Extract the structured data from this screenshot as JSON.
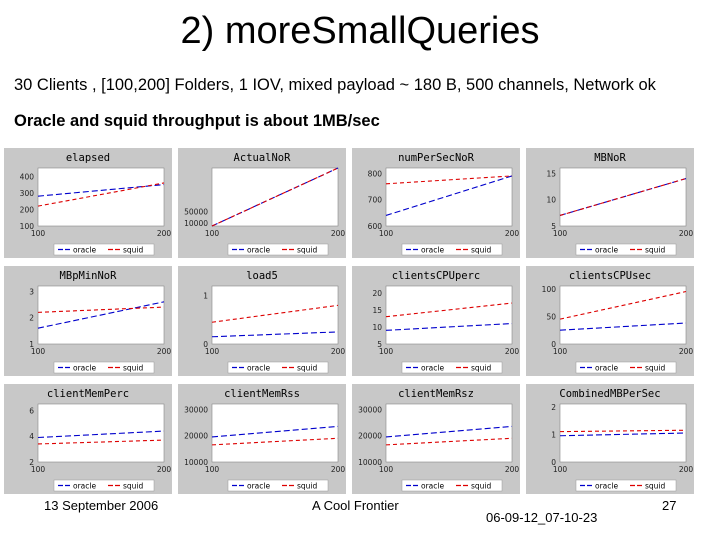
{
  "slide": {
    "title": "2) moreSmallQueries",
    "subtitle": "30 Clients , [100,200] Folders, 1 IOV, mixed payload ~ 180 B, 500 channels, Network ok",
    "subtitle2": "Oracle and squid throughput is about 1MB/sec",
    "footer_date": "13 September 2006",
    "footer_center": "A Cool Frontier",
    "footer_id": "06-09-12_07-10-23",
    "page_number": "27"
  },
  "colors": {
    "panel_bg": "#c8c8c8",
    "plot_bg": "#ffffff",
    "oracle": "#0000cc",
    "squid": "#dd0000"
  },
  "legend_labels": [
    "oracle",
    "squid"
  ],
  "chart_data": [
    {
      "type": "line",
      "title": "elapsed",
      "xlim": [
        100,
        200
      ],
      "x_ticks": [
        "100",
        "200"
      ],
      "y_ticks": [
        "400",
        "300",
        "200",
        "100"
      ],
      "ylim": [
        100,
        450
      ],
      "series": [
        {
          "name": "oracle",
          "x": [
            100,
            200
          ],
          "values": [
            280,
            350
          ]
        },
        {
          "name": "squid",
          "x": [
            100,
            200
          ],
          "values": [
            220,
            360
          ]
        }
      ]
    },
    {
      "type": "line",
      "title": "ActualNoR",
      "xlim": [
        100,
        200
      ],
      "x_ticks": [
        "100",
        "200"
      ],
      "y_ticks": [
        "10000",
        "50000"
      ],
      "ylim": [
        0,
        200000
      ],
      "series": [
        {
          "name": "oracle",
          "x": [
            100,
            200
          ],
          "values": [
            0,
            200000
          ]
        },
        {
          "name": "squid",
          "x": [
            100,
            200
          ],
          "values": [
            0,
            200000
          ]
        }
      ]
    },
    {
      "type": "line",
      "title": "numPerSecNoR",
      "xlim": [
        100,
        200
      ],
      "x_ticks": [
        "100",
        "200"
      ],
      "y_ticks": [
        "800",
        "700",
        "600"
      ],
      "ylim": [
        600,
        820
      ],
      "series": [
        {
          "name": "oracle",
          "x": [
            100,
            200
          ],
          "values": [
            640,
            790
          ]
        },
        {
          "name": "squid",
          "x": [
            100,
            200
          ],
          "values": [
            760,
            790
          ]
        }
      ]
    },
    {
      "type": "line",
      "title": "MBNoR",
      "xlim": [
        100,
        200
      ],
      "x_ticks": [
        "100",
        "200"
      ],
      "y_ticks": [
        "15",
        "10",
        "5"
      ],
      "ylim": [
        5,
        16
      ],
      "series": [
        {
          "name": "oracle",
          "x": [
            100,
            200
          ],
          "values": [
            7,
            14
          ]
        },
        {
          "name": "squid",
          "x": [
            100,
            200
          ],
          "values": [
            7,
            14
          ]
        }
      ]
    },
    {
      "type": "line",
      "title": "MBpMinNoR",
      "xlim": [
        100,
        200
      ],
      "x_ticks": [
        "100",
        "200"
      ],
      "y_ticks": [
        "3",
        "2",
        "1"
      ],
      "ylim": [
        1,
        3.2
      ],
      "series": [
        {
          "name": "oracle",
          "x": [
            100,
            200
          ],
          "values": [
            1.6,
            2.6
          ]
        },
        {
          "name": "squid",
          "x": [
            100,
            200
          ],
          "values": [
            2.2,
            2.4
          ]
        }
      ]
    },
    {
      "type": "line",
      "title": "load5",
      "xlim": [
        100,
        200
      ],
      "x_ticks": [
        "100",
        "200"
      ],
      "y_ticks": [
        "1",
        "0"
      ],
      "ylim": [
        0,
        1.2
      ],
      "series": [
        {
          "name": "oracle",
          "x": [
            100,
            200
          ],
          "values": [
            0.15,
            0.25
          ]
        },
        {
          "name": "squid",
          "x": [
            100,
            200
          ],
          "values": [
            0.45,
            0.8
          ]
        }
      ]
    },
    {
      "type": "line",
      "title": "clientsCPUperc",
      "xlim": [
        100,
        200
      ],
      "x_ticks": [
        "100",
        "200"
      ],
      "y_ticks": [
        "20",
        "15",
        "10",
        "5"
      ],
      "ylim": [
        5,
        22
      ],
      "series": [
        {
          "name": "oracle",
          "x": [
            100,
            200
          ],
          "values": [
            9,
            11
          ]
        },
        {
          "name": "squid",
          "x": [
            100,
            200
          ],
          "values": [
            13,
            17
          ]
        }
      ]
    },
    {
      "type": "line",
      "title": "clientsCPUsec",
      "xlim": [
        100,
        200
      ],
      "x_ticks": [
        "100",
        "200"
      ],
      "y_ticks": [
        "100",
        "50",
        "0"
      ],
      "ylim": [
        0,
        105
      ],
      "series": [
        {
          "name": "oracle",
          "x": [
            100,
            200
          ],
          "values": [
            25,
            38
          ]
        },
        {
          "name": "squid",
          "x": [
            100,
            200
          ],
          "values": [
            45,
            95
          ]
        }
      ]
    },
    {
      "type": "line",
      "title": "clientMemPerc",
      "xlim": [
        100,
        200
      ],
      "x_ticks": [
        "100",
        "200"
      ],
      "y_ticks": [
        "6",
        "4",
        "2"
      ],
      "ylim": [
        2,
        6.5
      ],
      "series": [
        {
          "name": "oracle",
          "x": [
            100,
            200
          ],
          "values": [
            3.9,
            4.4
          ]
        },
        {
          "name": "squid",
          "x": [
            100,
            200
          ],
          "values": [
            3.4,
            3.7
          ]
        }
      ]
    },
    {
      "type": "line",
      "title": "clientMemRss",
      "xlim": [
        100,
        200
      ],
      "x_ticks": [
        "100",
        "200"
      ],
      "y_ticks": [
        "30000",
        "20000",
        "10000"
      ],
      "ylim": [
        10000,
        32000
      ],
      "series": [
        {
          "name": "oracle",
          "x": [
            100,
            200
          ],
          "values": [
            19500,
            23500
          ]
        },
        {
          "name": "squid",
          "x": [
            100,
            200
          ],
          "values": [
            16500,
            19000
          ]
        }
      ]
    },
    {
      "type": "line",
      "title": "clientMemRsz",
      "xlim": [
        100,
        200
      ],
      "x_ticks": [
        "100",
        "200"
      ],
      "y_ticks": [
        "30000",
        "20000",
        "10000"
      ],
      "ylim": [
        10000,
        32000
      ],
      "series": [
        {
          "name": "oracle",
          "x": [
            100,
            200
          ],
          "values": [
            19500,
            23500
          ]
        },
        {
          "name": "squid",
          "x": [
            100,
            200
          ],
          "values": [
            16500,
            19000
          ]
        }
      ]
    },
    {
      "type": "line",
      "title": "CombinedMBPerSec",
      "xlim": [
        100,
        200
      ],
      "x_ticks": [
        "100",
        "200"
      ],
      "y_ticks": [
        "2",
        "1",
        "0"
      ],
      "ylim": [
        0,
        2.1
      ],
      "series": [
        {
          "name": "oracle",
          "x": [
            100,
            200
          ],
          "values": [
            0.95,
            1.05
          ]
        },
        {
          "name": "squid",
          "x": [
            100,
            200
          ],
          "values": [
            1.1,
            1.15
          ]
        }
      ]
    }
  ]
}
